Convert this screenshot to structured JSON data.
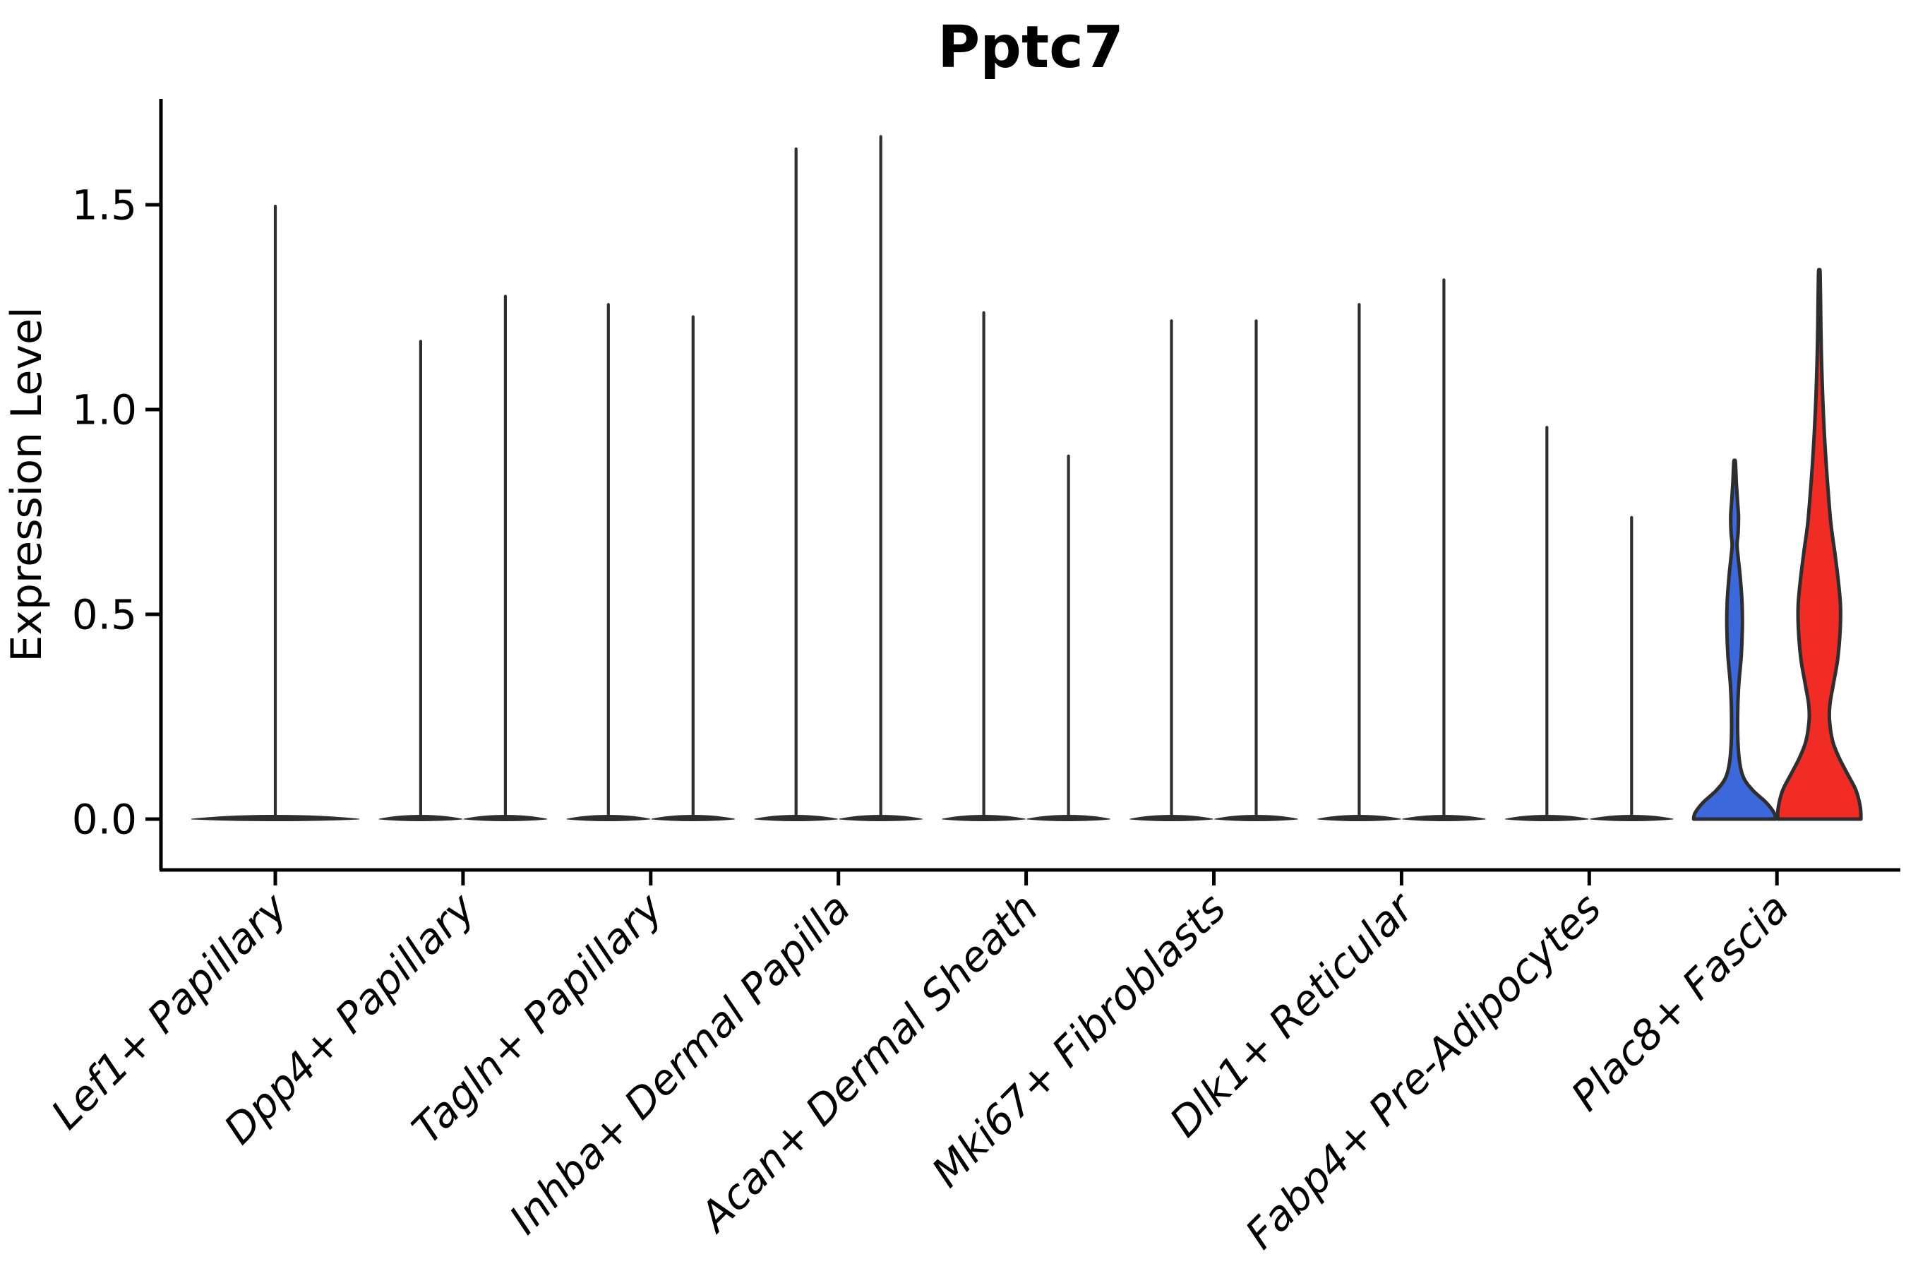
{
  "chart_data": {
    "type": "violin",
    "title": "Pptc7",
    "ylabel": "Expression Level",
    "xlabel": "",
    "grid": false,
    "legend": "none",
    "ylim": [
      0,
      1.75
    ],
    "ytick_values": [
      0.0,
      0.5,
      1.0,
      1.5
    ],
    "ytick_labels": [
      "0.0",
      "0.5",
      "1.0",
      "1.5"
    ],
    "categories": [
      "Lef1+ Papillary",
      "Dpp4+ Papillary",
      "Tagln+ Papillary",
      "Inhba+ Dermal Papilla",
      "Acan+ Dermal Sheath",
      "Mki67+ Fibroblasts",
      "Dlk1+ Reticular",
      "Fabp4+ Pre-Adipocytes",
      "Plac8+ Fascia"
    ],
    "violins": [
      {
        "category": 0,
        "slot": "center",
        "max": 1.5,
        "fill": "none"
      },
      {
        "category": 1,
        "slot": "left",
        "max": 1.17,
        "fill": "none"
      },
      {
        "category": 1,
        "slot": "right",
        "max": 1.28,
        "fill": "none"
      },
      {
        "category": 2,
        "slot": "left",
        "max": 1.26,
        "fill": "none"
      },
      {
        "category": 2,
        "slot": "right",
        "max": 1.23,
        "fill": "none"
      },
      {
        "category": 3,
        "slot": "left",
        "max": 1.64,
        "fill": "none"
      },
      {
        "category": 3,
        "slot": "right",
        "max": 1.67,
        "fill": "none"
      },
      {
        "category": 4,
        "slot": "left",
        "max": 1.24,
        "fill": "none"
      },
      {
        "category": 4,
        "slot": "right",
        "max": 0.89,
        "fill": "none"
      },
      {
        "category": 5,
        "slot": "left",
        "max": 1.22,
        "fill": "none"
      },
      {
        "category": 5,
        "slot": "right",
        "max": 1.22,
        "fill": "none"
      },
      {
        "category": 6,
        "slot": "left",
        "max": 1.26,
        "fill": "none"
      },
      {
        "category": 6,
        "slot": "right",
        "max": 1.32,
        "fill": "none"
      },
      {
        "category": 7,
        "slot": "left",
        "max": 0.96,
        "fill": "none"
      },
      {
        "category": 7,
        "slot": "right",
        "max": 0.74,
        "fill": "none"
      },
      {
        "category": 8,
        "slot": "left",
        "max": 0.87,
        "fill": "#3B68DB",
        "profile": [
          [
            0,
            58
          ],
          [
            0.015,
            56
          ],
          [
            0.04,
            45
          ],
          [
            0.07,
            26
          ],
          [
            0.1,
            13
          ],
          [
            0.14,
            7
          ],
          [
            0.2,
            4.5
          ],
          [
            0.27,
            4.5
          ],
          [
            0.33,
            6
          ],
          [
            0.4,
            9.5
          ],
          [
            0.47,
            11
          ],
          [
            0.53,
            10.5
          ],
          [
            0.59,
            8
          ],
          [
            0.64,
            5
          ],
          [
            0.67,
            3.5
          ],
          [
            0.7,
            5
          ],
          [
            0.74,
            5.5
          ],
          [
            0.78,
            4
          ],
          [
            0.82,
            2.5
          ],
          [
            0.87,
            1.2
          ]
        ]
      },
      {
        "category": 8,
        "slot": "right",
        "max": 1.33,
        "fill": "#F02C25",
        "profile": [
          [
            0,
            59
          ],
          [
            0.03,
            58
          ],
          [
            0.07,
            52
          ],
          [
            0.11,
            40
          ],
          [
            0.15,
            28
          ],
          [
            0.19,
            19
          ],
          [
            0.24,
            14.5
          ],
          [
            0.28,
            15
          ],
          [
            0.33,
            20
          ],
          [
            0.39,
            26
          ],
          [
            0.46,
            29.5
          ],
          [
            0.52,
            30
          ],
          [
            0.58,
            27
          ],
          [
            0.65,
            22
          ],
          [
            0.72,
            16.5
          ],
          [
            0.79,
            13
          ],
          [
            0.86,
            10
          ],
          [
            0.93,
            7.5
          ],
          [
            1.0,
            5.5
          ],
          [
            1.07,
            4
          ],
          [
            1.13,
            3
          ],
          [
            1.2,
            2.2
          ],
          [
            1.33,
            1.2
          ]
        ]
      }
    ],
    "colors": {
      "outline": "#2E2E2E",
      "axis": "#000000",
      "blue_fill": "#3B68DB",
      "red_fill": "#F02C25",
      "background": "#FFFFFF"
    }
  }
}
